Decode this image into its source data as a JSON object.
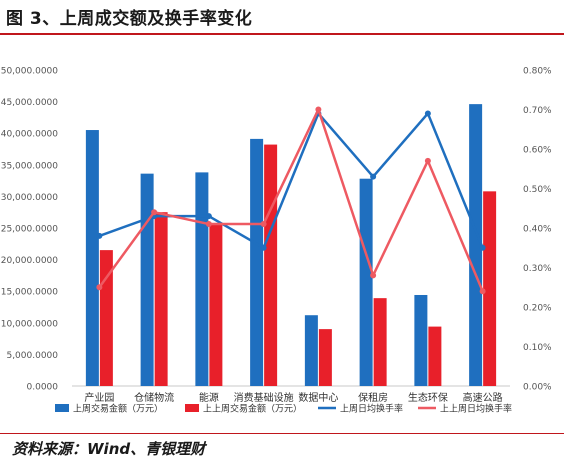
{
  "header": {
    "title": "图 3、上周成交额及换手率变化"
  },
  "footer": {
    "source": "资料来源：Wind、青银理财"
  },
  "colors": {
    "accent": "#c0161c",
    "bar_last": "#1f6fbf",
    "bar_prev": "#e8202a",
    "line_last": "#1f6fbf",
    "line_prev": "#ee5a62"
  },
  "chart_data": {
    "type": "bar",
    "title": "",
    "xlabel": "",
    "ylabel": "",
    "categories": [
      "产业园",
      "仓储物流",
      "能源",
      "消费基础设施",
      "数据中心",
      "保租房",
      "生态环保",
      "高速公路"
    ],
    "ylim": [
      0,
      50000
    ],
    "y2lim": [
      0,
      0.008
    ],
    "yticks": [
      0,
      5000,
      10000,
      15000,
      20000,
      25000,
      30000,
      35000,
      40000,
      45000,
      50000
    ],
    "ytick_labels": [
      "0.0000",
      "5,000.0000",
      "10,000.0000",
      "15,000.0000",
      "20,000.0000",
      "25,000.0000",
      "30,000.0000",
      "35,000.0000",
      "40,000.0000",
      "45,000.0000",
      "50,000.0000"
    ],
    "y2ticks": [
      0,
      0.001,
      0.002,
      0.003,
      0.004,
      0.005,
      0.006,
      0.007,
      0.008
    ],
    "y2tick_labels": [
      "0.00%",
      "0.10%",
      "0.20%",
      "0.30%",
      "0.40%",
      "0.50%",
      "0.60%",
      "0.70%",
      "0.80%"
    ],
    "grid": false,
    "legend": "bottom",
    "series": [
      {
        "name": "上周交易金额（万元）",
        "kind": "bar",
        "axis": "left",
        "color": "#1f6fbf",
        "values": [
          40500,
          33600,
          33800,
          39100,
          11200,
          32800,
          14400,
          44600
        ]
      },
      {
        "name": "上上周交易金额（万元）",
        "kind": "bar",
        "axis": "left",
        "color": "#e8202a",
        "values": [
          21500,
          27500,
          25600,
          38200,
          9000,
          13900,
          9400,
          30800
        ]
      },
      {
        "name": "上周日均换手率",
        "kind": "line",
        "axis": "right",
        "color": "#1f6fbf",
        "values": [
          0.0038,
          0.0043,
          0.0043,
          0.0035,
          0.0069,
          0.0053,
          0.0069,
          0.0035
        ]
      },
      {
        "name": "上上周日均换手率",
        "kind": "line",
        "axis": "right",
        "color": "#ee5a62",
        "values": [
          0.0025,
          0.0044,
          0.0041,
          0.0041,
          0.007,
          0.0028,
          0.0057,
          0.0024
        ]
      }
    ]
  }
}
